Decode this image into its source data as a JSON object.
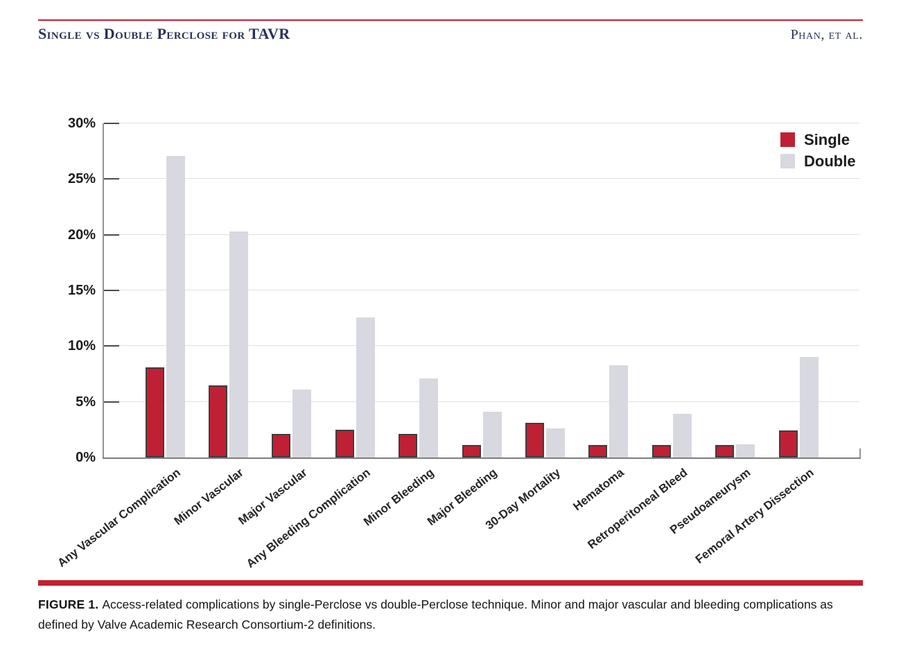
{
  "header": {
    "title": "Single vs Double Perclose for TAVR",
    "authors": "Phan, et al."
  },
  "colors": {
    "accent_red": "#c32032",
    "navy": "#283257",
    "bar_single": "#bf2033",
    "bar_single_border": "#3e3e3e",
    "bar_double": "#d8d8e0",
    "gridline": "#e0e0e0",
    "axis_spine": "#949494",
    "tick_dark": "#4b4b4b"
  },
  "chart_data": {
    "type": "bar",
    "title": "",
    "xlabel": "",
    "ylabel": "",
    "ylim": [
      0,
      30
    ],
    "ytick_step": 5,
    "ytick_labels": [
      "0%",
      "5%",
      "10%",
      "15%",
      "20%",
      "25%",
      "30%"
    ],
    "grid": true,
    "legend_position": "top-right",
    "categories": [
      "Any Vascular Complication",
      "Minor Vascular",
      "Major Vascular",
      "Any Bleeding Complication",
      "Minor Bleeding",
      "Major Bleeding",
      "30-Day Mortality",
      "Hematoma",
      "Retroperitoneal Bleed",
      "Pseudoaneurysm",
      "Femoral Artery Dissection"
    ],
    "series": [
      {
        "name": "Single",
        "values": [
          8.1,
          6.5,
          2.1,
          2.5,
          2.1,
          1.1,
          3.1,
          1.1,
          1.1,
          1.1,
          2.4
        ]
      },
      {
        "name": "Double",
        "values": [
          27.1,
          20.3,
          6.1,
          12.6,
          7.1,
          4.1,
          2.6,
          8.3,
          3.9,
          1.2,
          9.0
        ]
      }
    ]
  },
  "caption": {
    "label": "FIGURE 1.",
    "text": "Access-related complications by single-Perclose vs double-Perclose technique. Minor and major vascular and bleeding complications as defined by Valve Academic Research Consortium-2 definitions."
  }
}
